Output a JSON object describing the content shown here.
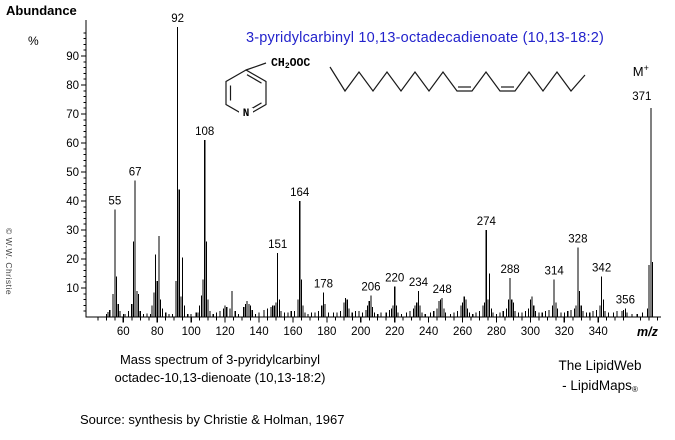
{
  "title": {
    "text": "3-pyridylcarbinyl 10,13-octadecadienoate (10,13-18:2)",
    "color": "#2323cc"
  },
  "molecule": {
    "ester_prefix": "CH",
    "ester_sub": "2",
    "ester_suffix": "OOC",
    "nitrogen": "N"
  },
  "watermark": "© W.W. Christie",
  "captions": {
    "spectrum_line1": "Mass spectrum of 3-pyridylcarbinyl",
    "spectrum_line2": "octadec-10,13-dienoate (10,13-18:2)",
    "source": "Source: synthesis by Christie & Holman, 1967",
    "brand_line1": "The LipidWeb",
    "brand_line2": "- LipidMaps",
    "brand_reg": "®"
  },
  "chart_data": {
    "type": "bar",
    "title": "3-pyridylcarbinyl 10,13-octadecadienoate (10,13-18:2)",
    "xlabel": "m/z",
    "ylabel": "Abundance",
    "ylabel_unit": "%",
    "xlim": [
      38,
      377
    ],
    "ylim": [
      0,
      100
    ],
    "grid": false,
    "x_ticks": [
      60,
      80,
      100,
      120,
      140,
      160,
      180,
      200,
      220,
      240,
      260,
      280,
      300,
      320,
      340
    ],
    "y_ticks": [
      10,
      20,
      30,
      40,
      50,
      60,
      70,
      80,
      90
    ],
    "labeled_peaks": [
      55,
      67,
      92,
      108,
      151,
      164,
      178,
      206,
      220,
      234,
      248,
      274,
      288,
      314,
      328,
      342,
      356
    ],
    "molecular_ion": {
      "mz": 371,
      "label": "M",
      "label_sup": "+",
      "value": "371"
    },
    "peaks": [
      [
        50,
        1
      ],
      [
        51,
        1.7
      ],
      [
        52,
        2.4
      ],
      [
        54,
        8
      ],
      [
        55,
        37
      ],
      [
        56,
        14
      ],
      [
        57,
        4.5
      ],
      [
        58,
        2
      ],
      [
        60,
        1
      ],
      [
        61,
        1
      ],
      [
        63,
        2
      ],
      [
        65,
        4.5
      ],
      [
        66,
        26
      ],
      [
        67,
        47
      ],
      [
        68,
        9
      ],
      [
        69,
        8
      ],
      [
        70,
        2
      ],
      [
        72,
        1
      ],
      [
        74,
        1.2
      ],
      [
        76,
        1
      ],
      [
        77,
        4
      ],
      [
        78,
        8.5
      ],
      [
        79,
        21.5
      ],
      [
        80,
        12.5
      ],
      [
        81,
        28
      ],
      [
        82,
        6
      ],
      [
        83,
        3
      ],
      [
        85,
        1.5
      ],
      [
        87,
        1
      ],
      [
        89,
        1
      ],
      [
        91,
        12.5
      ],
      [
        92,
        100
      ],
      [
        93,
        44
      ],
      [
        94,
        7
      ],
      [
        95,
        20.5
      ],
      [
        96,
        4
      ],
      [
        98,
        1
      ],
      [
        100,
        1
      ],
      [
        103,
        1.5
      ],
      [
        104,
        1.5
      ],
      [
        105,
        4
      ],
      [
        106,
        7.5
      ],
      [
        107,
        13
      ],
      [
        108,
        61
      ],
      [
        109,
        26
      ],
      [
        110,
        6
      ],
      [
        111,
        2
      ],
      [
        113,
        1
      ],
      [
        115,
        1.5
      ],
      [
        117,
        2
      ],
      [
        119,
        3
      ],
      [
        120,
        4
      ],
      [
        121,
        3.5
      ],
      [
        123,
        3
      ],
      [
        124,
        9
      ],
      [
        126,
        2
      ],
      [
        128,
        1
      ],
      [
        131,
        3.5
      ],
      [
        132,
        4.5
      ],
      [
        133,
        5.5
      ],
      [
        134,
        4.5
      ],
      [
        135,
        4
      ],
      [
        136,
        2.5
      ],
      [
        138,
        1
      ],
      [
        140,
        1.5
      ],
      [
        143,
        2.5
      ],
      [
        145,
        3
      ],
      [
        147,
        3.5
      ],
      [
        148,
        4
      ],
      [
        149,
        4
      ],
      [
        150,
        5
      ],
      [
        151,
        22
      ],
      [
        152,
        6
      ],
      [
        153,
        2
      ],
      [
        155,
        1.5
      ],
      [
        157,
        1.5
      ],
      [
        159,
        2
      ],
      [
        161,
        2
      ],
      [
        163,
        6
      ],
      [
        164,
        40
      ],
      [
        165,
        13
      ],
      [
        166,
        4
      ],
      [
        167,
        1.5
      ],
      [
        169,
        1
      ],
      [
        171,
        1.5
      ],
      [
        173,
        1.5
      ],
      [
        175,
        2
      ],
      [
        177,
        4
      ],
      [
        178,
        8.5
      ],
      [
        179,
        4.5
      ],
      [
        181,
        1.5
      ],
      [
        184,
        1.5
      ],
      [
        186,
        1.5
      ],
      [
        188,
        2
      ],
      [
        190,
        5
      ],
      [
        191,
        6.5
      ],
      [
        192,
        6
      ],
      [
        193,
        3
      ],
      [
        195,
        1.5
      ],
      [
        197,
        2
      ],
      [
        199,
        2
      ],
      [
        201,
        1.5
      ],
      [
        203,
        2.5
      ],
      [
        204,
        4
      ],
      [
        205,
        5.5
      ],
      [
        206,
        7.5
      ],
      [
        207,
        3.5
      ],
      [
        208,
        1.5
      ],
      [
        210,
        1
      ],
      [
        212,
        1.5
      ],
      [
        215,
        1.5
      ],
      [
        217,
        2.5
      ],
      [
        218,
        3
      ],
      [
        219,
        4
      ],
      [
        220,
        10.5
      ],
      [
        221,
        4
      ],
      [
        222,
        1.5
      ],
      [
        224,
        1
      ],
      [
        227,
        1.5
      ],
      [
        229,
        2
      ],
      [
        231,
        3
      ],
      [
        232,
        4
      ],
      [
        233,
        5
      ],
      [
        234,
        9
      ],
      [
        235,
        4
      ],
      [
        236,
        1.5
      ],
      [
        238,
        1
      ],
      [
        241,
        1.5
      ],
      [
        243,
        2
      ],
      [
        245,
        3
      ],
      [
        246,
        5.5
      ],
      [
        247,
        6
      ],
      [
        248,
        6.5
      ],
      [
        249,
        3
      ],
      [
        250,
        1.5
      ],
      [
        253,
        1
      ],
      [
        255,
        1.5
      ],
      [
        257,
        2
      ],
      [
        259,
        4
      ],
      [
        260,
        5
      ],
      [
        261,
        7
      ],
      [
        262,
        6
      ],
      [
        263,
        3
      ],
      [
        264,
        1.5
      ],
      [
        266,
        1
      ],
      [
        268,
        1.5
      ],
      [
        270,
        2
      ],
      [
        272,
        4
      ],
      [
        273,
        5
      ],
      [
        274,
        30
      ],
      [
        275,
        6
      ],
      [
        276,
        15
      ],
      [
        277,
        3
      ],
      [
        278,
        1.5
      ],
      [
        280,
        1
      ],
      [
        282,
        1.5
      ],
      [
        284,
        2
      ],
      [
        286,
        3
      ],
      [
        287,
        6
      ],
      [
        288,
        13.5
      ],
      [
        289,
        6
      ],
      [
        290,
        5
      ],
      [
        291,
        2
      ],
      [
        293,
        1.5
      ],
      [
        295,
        1.5
      ],
      [
        297,
        2
      ],
      [
        299,
        3
      ],
      [
        300,
        6
      ],
      [
        301,
        7
      ],
      [
        302,
        4
      ],
      [
        303,
        2
      ],
      [
        305,
        1.5
      ],
      [
        307,
        1.5
      ],
      [
        309,
        2
      ],
      [
        311,
        2.5
      ],
      [
        313,
        4
      ],
      [
        314,
        13
      ],
      [
        315,
        5
      ],
      [
        316,
        3
      ],
      [
        318,
        1.5
      ],
      [
        320,
        1.5
      ],
      [
        322,
        2
      ],
      [
        324,
        2.5
      ],
      [
        326,
        3
      ],
      [
        327,
        4
      ],
      [
        328,
        24
      ],
      [
        329,
        9
      ],
      [
        330,
        4
      ],
      [
        331,
        2
      ],
      [
        333,
        1.5
      ],
      [
        335,
        1.5
      ],
      [
        337,
        2
      ],
      [
        339,
        2.5
      ],
      [
        341,
        4
      ],
      [
        342,
        14
      ],
      [
        343,
        6
      ],
      [
        344,
        2
      ],
      [
        346,
        1.5
      ],
      [
        349,
        1.5
      ],
      [
        351,
        2
      ],
      [
        354,
        2
      ],
      [
        355,
        2.5
      ],
      [
        356,
        3
      ],
      [
        357,
        1.5
      ],
      [
        360,
        1
      ],
      [
        363,
        1
      ],
      [
        366,
        1.5
      ],
      [
        369,
        3
      ],
      [
        370,
        18
      ],
      [
        371,
        72
      ],
      [
        372,
        19
      ]
    ]
  }
}
